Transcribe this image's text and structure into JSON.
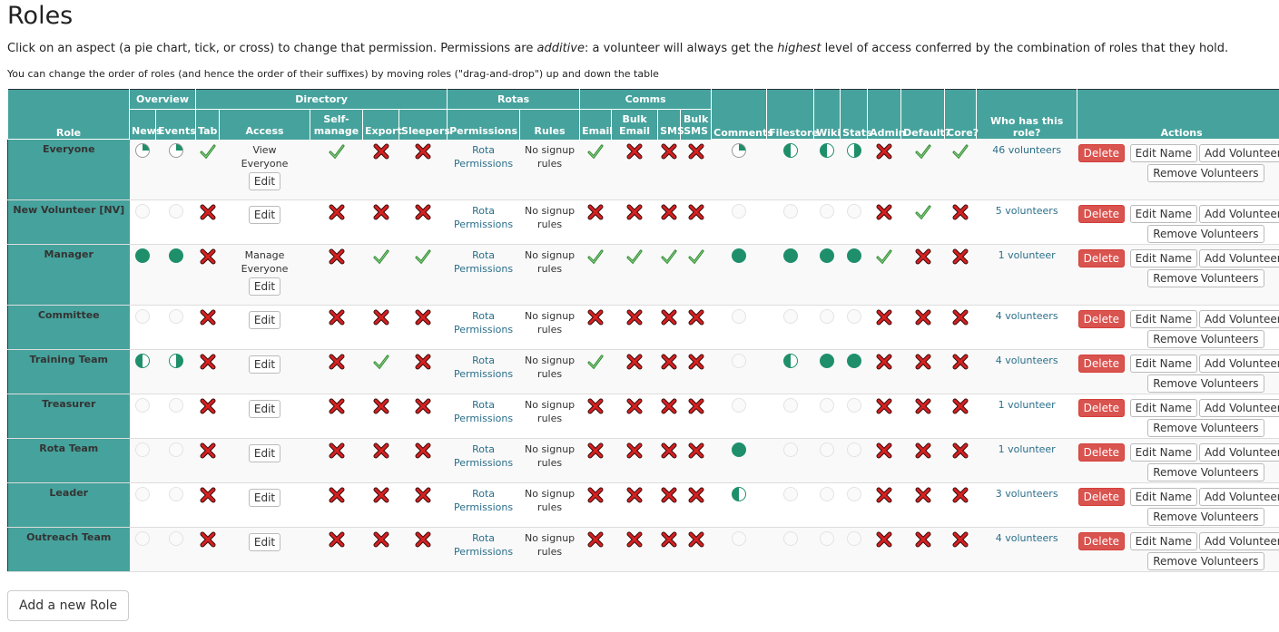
{
  "page": {
    "title": "Roles",
    "intro_1": "Click on an aspect (a pie chart, tick, or cross) to change that permission. Permissions are ",
    "intro_em1": "additive",
    "intro_2": ": a volunteer will always get the ",
    "intro_em2": "highest",
    "intro_3": " level of access conferred by the combination of roles that they hold.",
    "order_note": "You can change the order of roles (and hence the order of their suffixes) by moving roles (\"drag-and-drop\") up and down the table",
    "add_role_label": "Add a new Role"
  },
  "headers": {
    "role": "Role",
    "overview": "Overview",
    "directory": "Directory",
    "rotas": "Rotas",
    "comms": "Comms",
    "news": "News",
    "events": "Events",
    "tab": "Tab",
    "access": "Access",
    "self_manage": "Self-manage",
    "export": "Export",
    "sleepers": "Sleepers",
    "permissions": "Permissions",
    "rules": "Rules",
    "email": "Email",
    "bulk_email": "Bulk Email",
    "sms": "SMS",
    "bulk_sms": "Bulk SMS",
    "comments": "Comments",
    "filestore": "Filestore",
    "wiki": "Wiki",
    "stats": "Stats",
    "admin": "Admin",
    "default": "Default?",
    "core": "Core?",
    "who": "Who has this role?",
    "actions": "Actions"
  },
  "labels": {
    "edit": "Edit",
    "rota_permissions": "Rota Permissions",
    "no_signup_rules": "No signup rules",
    "delete": "Delete",
    "edit_name": "Edit Name",
    "add_volunteers": "Add Volunteers",
    "remove_volunteers": "Remove Volunteers"
  },
  "colors": {
    "header_bg": "#46a29c",
    "pie_green": "#1e8f6a",
    "cross_red": "#cc1f1f",
    "tick_green": "#3aa23a",
    "danger": "#d9534f"
  },
  "roles": [
    {
      "name": "Everyone",
      "news": "quarter",
      "events": "quarter",
      "tab": "tick",
      "access_line1": "View",
      "access_line2": "Everyone",
      "self_manage": "tick",
      "export": "cross",
      "sleepers": "cross",
      "email": "tick",
      "bulk_email": "cross",
      "sms": "cross",
      "bulk_sms": "cross",
      "comments": "quarter",
      "filestore": "half",
      "wiki": "half",
      "stats": "half-right",
      "admin": "cross",
      "default": "tick",
      "core": "tick",
      "who": "46 volunteers",
      "tall": true
    },
    {
      "name": "New Volunteer [NV]",
      "news": "empty",
      "events": "empty",
      "tab": "cross",
      "access_line1": "",
      "access_line2": "",
      "self_manage": "cross",
      "export": "cross",
      "sleepers": "cross",
      "email": "cross",
      "bulk_email": "cross",
      "sms": "cross",
      "bulk_sms": "cross",
      "comments": "empty",
      "filestore": "empty",
      "wiki": "empty",
      "stats": "empty",
      "admin": "cross",
      "default": "tick",
      "core": "cross",
      "who": "5 volunteers",
      "tall": false
    },
    {
      "name": "Manager",
      "news": "full",
      "events": "full",
      "tab": "cross",
      "access_line1": "Manage",
      "access_line2": "Everyone",
      "self_manage": "cross",
      "export": "tick",
      "sleepers": "tick",
      "email": "tick",
      "bulk_email": "tick",
      "sms": "tick",
      "bulk_sms": "tick",
      "comments": "full",
      "filestore": "full",
      "wiki": "full",
      "stats": "full",
      "admin": "tick",
      "default": "cross",
      "core": "cross",
      "who": "1 volunteer",
      "tall": true
    },
    {
      "name": "Committee",
      "news": "empty",
      "events": "empty",
      "tab": "cross",
      "access_line1": "",
      "access_line2": "",
      "self_manage": "cross",
      "export": "cross",
      "sleepers": "cross",
      "email": "cross",
      "bulk_email": "cross",
      "sms": "cross",
      "bulk_sms": "cross",
      "comments": "empty",
      "filestore": "empty",
      "wiki": "empty",
      "stats": "empty",
      "admin": "cross",
      "default": "cross",
      "core": "cross",
      "who": "4 volunteers",
      "tall": false
    },
    {
      "name": "Training Team",
      "news": "half",
      "events": "half-right",
      "tab": "cross",
      "access_line1": "",
      "access_line2": "",
      "self_manage": "cross",
      "export": "tick",
      "sleepers": "cross",
      "email": "tick",
      "bulk_email": "cross",
      "sms": "cross",
      "bulk_sms": "cross",
      "comments": "empty",
      "filestore": "half",
      "wiki": "full",
      "stats": "full",
      "admin": "cross",
      "default": "cross",
      "core": "cross",
      "who": "4 volunteers",
      "tall": false
    },
    {
      "name": "Treasurer",
      "news": "empty",
      "events": "empty",
      "tab": "cross",
      "access_line1": "",
      "access_line2": "",
      "self_manage": "cross",
      "export": "cross",
      "sleepers": "cross",
      "email": "cross",
      "bulk_email": "cross",
      "sms": "cross",
      "bulk_sms": "cross",
      "comments": "empty",
      "filestore": "empty",
      "wiki": "empty",
      "stats": "empty",
      "admin": "cross",
      "default": "cross",
      "core": "cross",
      "who": "1 volunteer",
      "tall": false
    },
    {
      "name": "Rota Team",
      "news": "empty",
      "events": "empty",
      "tab": "cross",
      "access_line1": "",
      "access_line2": "",
      "self_manage": "cross",
      "export": "cross",
      "sleepers": "cross",
      "email": "cross",
      "bulk_email": "cross",
      "sms": "cross",
      "bulk_sms": "cross",
      "comments": "full",
      "filestore": "empty",
      "wiki": "empty",
      "stats": "empty",
      "admin": "cross",
      "default": "cross",
      "core": "cross",
      "who": "1 volunteer",
      "tall": false
    },
    {
      "name": "Leader",
      "news": "empty",
      "events": "empty",
      "tab": "cross",
      "access_line1": "",
      "access_line2": "",
      "self_manage": "cross",
      "export": "cross",
      "sleepers": "cross",
      "email": "cross",
      "bulk_email": "cross",
      "sms": "cross",
      "bulk_sms": "cross",
      "comments": "half",
      "filestore": "empty",
      "wiki": "empty",
      "stats": "empty",
      "admin": "cross",
      "default": "cross",
      "core": "cross",
      "who": "3 volunteers",
      "tall": false
    },
    {
      "name": "Outreach Team",
      "news": "empty",
      "events": "empty",
      "tab": "cross",
      "access_line1": "",
      "access_line2": "",
      "self_manage": "cross",
      "export": "cross",
      "sleepers": "cross",
      "email": "cross",
      "bulk_email": "cross",
      "sms": "cross",
      "bulk_sms": "cross",
      "comments": "empty",
      "filestore": "empty",
      "wiki": "empty",
      "stats": "empty",
      "admin": "cross",
      "default": "cross",
      "core": "cross",
      "who": "4 volunteers",
      "tall": false
    }
  ]
}
